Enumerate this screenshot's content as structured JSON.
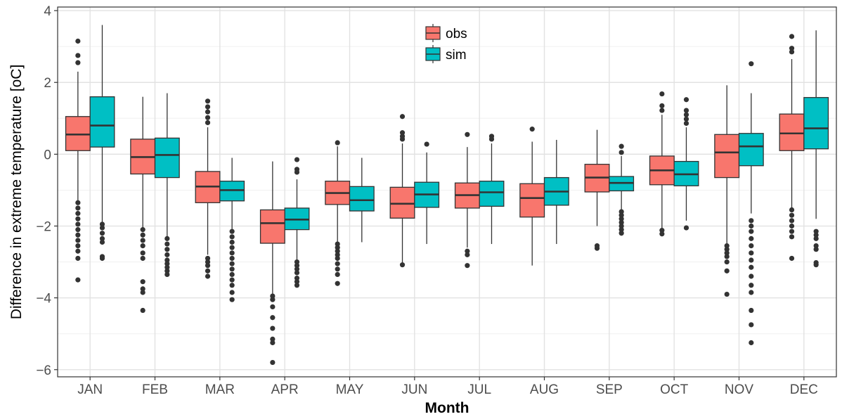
{
  "chart_data": {
    "type": "box",
    "title": "",
    "xlabel": "Month",
    "ylabel": "Difference in extreme temperature [oC]",
    "ylim": [
      -6.2,
      4.1
    ],
    "yticks": [
      -6,
      -4,
      -2,
      0,
      2,
      4
    ],
    "grid": true,
    "legend_position": "top-center",
    "categories": [
      "JAN",
      "FEB",
      "MAR",
      "APR",
      "MAY",
      "JUN",
      "JUL",
      "AUG",
      "SEP",
      "OCT",
      "NOV",
      "DEC"
    ],
    "series": [
      {
        "name": "obs",
        "color": "#f8766d",
        "boxes": [
          {
            "whislo": -1.3,
            "q1": 0.1,
            "med": 0.55,
            "q3": 1.05,
            "whishi": 2.3,
            "fliers": [
              3.15,
              2.75,
              2.55,
              -1.35,
              -1.5,
              -1.65,
              -1.8,
              -1.95,
              -2.1,
              -2.25,
              -2.4,
              -2.55,
              -2.7,
              -2.9,
              -3.5
            ]
          },
          {
            "whislo": -2.05,
            "q1": -0.55,
            "med": -0.08,
            "q3": 0.42,
            "whishi": 1.6,
            "fliers": [
              -2.1,
              -2.25,
              -2.4,
              -2.55,
              -2.75,
              -2.9,
              -3.55,
              -3.75,
              -3.85,
              -4.35
            ]
          },
          {
            "whislo": -2.8,
            "q1": -1.35,
            "med": -0.9,
            "q3": -0.48,
            "whishi": 0.75,
            "fliers": [
              1.48,
              1.32,
              1.18,
              1.02,
              0.88,
              -2.9,
              -3.0,
              -3.1,
              -3.25,
              -3.4
            ]
          },
          {
            "whislo": -3.9,
            "q1": -2.48,
            "med": -1.92,
            "q3": -1.55,
            "whishi": -0.2,
            "fliers": [
              -3.95,
              -4.05,
              -4.25,
              -4.55,
              -4.85,
              -5.15,
              -5.25,
              -5.8
            ]
          },
          {
            "whislo": -2.45,
            "q1": -1.4,
            "med": -1.08,
            "q3": -0.75,
            "whishi": 0.22,
            "fliers": [
              0.32,
              -2.5,
              -2.6,
              -2.7,
              -2.8,
              -2.9,
              -3.05,
              -3.2,
              -3.35,
              -3.6
            ]
          },
          {
            "whislo": -3.05,
            "q1": -1.78,
            "med": -1.38,
            "q3": -0.92,
            "whishi": 0.3,
            "fliers": [
              1.05,
              0.6,
              0.5,
              0.42,
              -3.08
            ]
          },
          {
            "whislo": -2.6,
            "q1": -1.5,
            "med": -1.14,
            "q3": -0.8,
            "whishi": 0.2,
            "fliers": [
              0.55,
              -2.7,
              -2.8,
              -3.1
            ]
          },
          {
            "whislo": -3.1,
            "q1": -1.75,
            "med": -1.22,
            "q3": -0.82,
            "whishi": 0.35,
            "fliers": [
              0.7
            ]
          },
          {
            "whislo": -2.0,
            "q1": -1.05,
            "med": -0.65,
            "q3": -0.28,
            "whishi": 0.68,
            "fliers": [
              -2.55,
              -2.62
            ]
          },
          {
            "whislo": -2.05,
            "q1": -0.85,
            "med": -0.45,
            "q3": -0.05,
            "whishi": 1.1,
            "fliers": [
              1.68,
              1.35,
              1.22,
              -2.12,
              -2.22
            ]
          },
          {
            "whislo": -2.5,
            "q1": -0.65,
            "med": 0.05,
            "q3": 0.55,
            "whishi": 1.92,
            "fliers": [
              -2.55,
              -2.65,
              -2.75,
              -2.85,
              -3.0,
              -3.25,
              -3.9
            ]
          },
          {
            "whislo": -1.5,
            "q1": 0.1,
            "med": 0.58,
            "q3": 1.12,
            "whishi": 2.65,
            "fliers": [
              3.28,
              2.95,
              2.85,
              -1.55,
              -1.7,
              -1.85,
              -2.0,
              -2.15,
              -2.3,
              -2.9
            ]
          }
        ]
      },
      {
        "name": "sim",
        "color": "#00bfc4",
        "boxes": [
          {
            "whislo": -1.9,
            "q1": 0.2,
            "med": 0.8,
            "q3": 1.6,
            "whishi": 3.6,
            "fliers": [
              -1.95,
              -2.05,
              -2.2,
              -2.35,
              -2.45,
              -2.85,
              -2.9
            ]
          },
          {
            "whislo": -2.3,
            "q1": -0.65,
            "med": -0.02,
            "q3": 0.45,
            "whishi": 1.7,
            "fliers": [
              -2.35,
              -2.5,
              -2.65,
              -2.8,
              -2.95,
              -3.05,
              -3.15,
              -3.25,
              -3.35
            ]
          },
          {
            "whislo": -2.1,
            "q1": -1.3,
            "med": -1.0,
            "q3": -0.75,
            "whishi": -0.1,
            "fliers": [
              -2.15,
              -2.3,
              -2.45,
              -2.6,
              -2.75,
              -2.9,
              -3.05,
              -3.2,
              -3.35,
              -3.5,
              -3.65,
              -3.85,
              -4.05
            ]
          },
          {
            "whislo": -2.95,
            "q1": -2.1,
            "med": -1.82,
            "q3": -1.5,
            "whishi": -0.7,
            "fliers": [
              -0.15,
              -0.42,
              -0.5,
              -3.0,
              -3.1,
              -3.2,
              -3.3,
              -3.45,
              -3.55,
              -3.65
            ]
          },
          {
            "whislo": -2.45,
            "q1": -1.58,
            "med": -1.28,
            "q3": -0.9,
            "whishi": -0.1,
            "fliers": []
          },
          {
            "whislo": -2.5,
            "q1": -1.48,
            "med": -1.12,
            "q3": -0.78,
            "whishi": 0.05,
            "fliers": [
              0.28
            ]
          },
          {
            "whislo": -2.5,
            "q1": -1.45,
            "med": -1.06,
            "q3": -0.75,
            "whishi": 0.3,
            "fliers": [
              0.5,
              0.42
            ]
          },
          {
            "whislo": -2.5,
            "q1": -1.42,
            "med": -1.04,
            "q3": -0.65,
            "whishi": 0.4,
            "fliers": []
          },
          {
            "whislo": -1.55,
            "q1": -1.02,
            "med": -0.8,
            "q3": -0.62,
            "whishi": -0.05,
            "fliers": [
              0.22,
              0.05,
              -1.6,
              -1.7,
              -1.8,
              -1.9,
              -2.0,
              -2.1,
              -2.2
            ]
          },
          {
            "whislo": -1.85,
            "q1": -0.88,
            "med": -0.56,
            "q3": -0.2,
            "whishi": 0.75,
            "fliers": [
              1.52,
              1.22,
              1.1,
              0.98,
              0.86,
              -2.05
            ]
          },
          {
            "whislo": -1.65,
            "q1": -0.32,
            "med": 0.22,
            "q3": 0.58,
            "whishi": 1.7,
            "fliers": [
              2.52,
              -1.85,
              -2.0,
              -2.15,
              -2.35,
              -2.55,
              -2.75,
              -2.95,
              -3.15,
              -3.4,
              -3.65,
              -3.85,
              -4.35,
              -4.75,
              -5.25
            ]
          },
          {
            "whislo": -1.8,
            "q1": 0.15,
            "med": 0.72,
            "q3": 1.58,
            "whishi": 3.45,
            "fliers": [
              -2.15,
              -2.25,
              -2.35,
              -2.55,
              -2.65,
              -3.02,
              -3.08
            ]
          }
        ]
      }
    ]
  }
}
